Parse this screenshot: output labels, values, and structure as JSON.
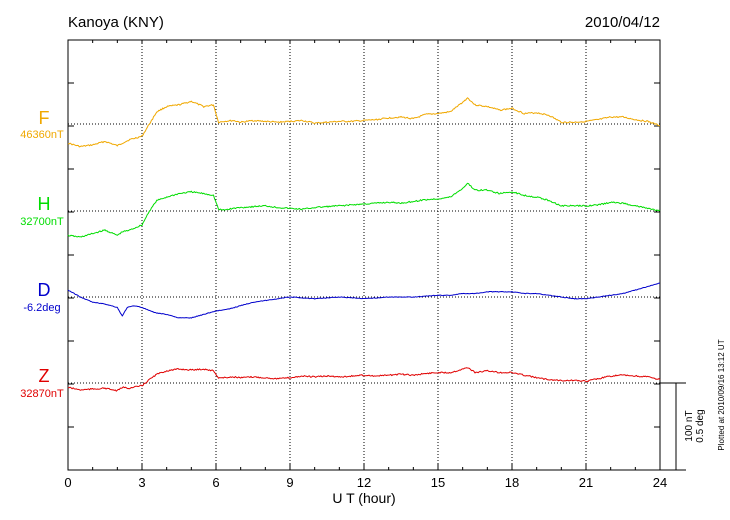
{
  "header": {
    "station": "Kanoya (KNY)",
    "date": "2010/04/12"
  },
  "footer": {
    "plotted_at": "Plotted at 2010/09/16 13:12 UT"
  },
  "scale_bar": {
    "label_nt": "100 nT",
    "label_deg": "0.5 deg"
  },
  "chart_data": {
    "type": "line",
    "title": "Kanoya (KNY)",
    "xlabel": "U T (hour)",
    "xlim": [
      0,
      24
    ],
    "xticks": [
      "0",
      "3",
      "6",
      "9",
      "12",
      "15",
      "18",
      "21",
      "24"
    ],
    "grid": "dotted vertical lines every 3 h; dotted baseline per trace",
    "scale": "vertical bar = 100 nT / 0.5 deg",
    "series": [
      {
        "name": "F",
        "baseline_label": "46360nT",
        "color": "#f0a800",
        "unit_per_scale_bar": 100,
        "hours": [
          0,
          0.5,
          1,
          1.5,
          2,
          2.2,
          2.5,
          3,
          3.3,
          3.6,
          4,
          4.5,
          5,
          5.5,
          5.9,
          6.1,
          6.3,
          6.7,
          7,
          7.5,
          8,
          8.5,
          9,
          9.5,
          10,
          10.5,
          11,
          11.5,
          12,
          12.5,
          13,
          13.5,
          14,
          14.5,
          15,
          15.5,
          16,
          16.2,
          16.5,
          17,
          17.5,
          18,
          18.5,
          19,
          19.5,
          20,
          20.5,
          21,
          21.5,
          22,
          22.5,
          23,
          23.5,
          24
        ],
        "values": [
          -22,
          -26,
          -24,
          -20,
          -25,
          -22,
          -18,
          -14,
          0,
          14,
          20,
          22,
          26,
          20,
          22,
          2,
          3,
          4,
          2,
          4,
          3,
          2,
          3,
          4,
          1,
          2,
          3,
          3,
          4,
          5,
          7,
          8,
          6,
          11,
          12,
          14,
          25,
          30,
          22,
          20,
          16,
          18,
          12,
          13,
          10,
          2,
          2,
          3,
          5,
          8,
          8,
          5,
          3,
          -2
        ]
      },
      {
        "name": "H",
        "baseline_label": "32700nT",
        "color": "#00dd00",
        "unit_per_scale_bar": 100,
        "hours": [
          0,
          0.5,
          1,
          1.5,
          2,
          2.2,
          2.5,
          3,
          3.3,
          3.6,
          4,
          4.5,
          5,
          5.5,
          5.9,
          6.1,
          6.3,
          6.7,
          7,
          7.5,
          8,
          8.5,
          9,
          9.5,
          10,
          10.5,
          11,
          11.5,
          12,
          12.5,
          13,
          13.5,
          14,
          14.5,
          15,
          15.5,
          16,
          16.2,
          16.5,
          17,
          17.5,
          18,
          18.5,
          19,
          19.5,
          20,
          20.5,
          21,
          21.5,
          22,
          22.5,
          23,
          23.5,
          24
        ],
        "values": [
          -28,
          -30,
          -26,
          -22,
          -28,
          -24,
          -22,
          -16,
          0,
          12,
          16,
          20,
          22,
          20,
          18,
          2,
          1,
          3,
          4,
          5,
          6,
          4,
          3,
          2,
          4,
          5,
          6,
          7,
          8,
          9,
          10,
          9,
          11,
          13,
          14,
          16,
          26,
          32,
          24,
          24,
          20,
          22,
          18,
          16,
          12,
          6,
          6,
          6,
          7,
          10,
          9,
          6,
          3,
          0
        ]
      },
      {
        "name": "D",
        "baseline_label": "-6.2deg",
        "color": "#0000cc",
        "unit_per_scale_bar": 0.5,
        "hours": [
          0,
          0.5,
          1,
          1.5,
          2,
          2.2,
          2.4,
          2.7,
          3,
          3.5,
          4,
          4.5,
          5,
          5.5,
          6,
          6.5,
          7,
          7.5,
          8,
          8.5,
          9,
          10,
          11,
          12,
          13,
          14,
          15,
          15.5,
          16,
          16.5,
          17,
          17.5,
          18,
          18.5,
          19,
          19.5,
          20,
          20.5,
          21,
          21.5,
          22,
          22.5,
          23,
          23.5,
          24
        ],
        "values": [
          0.04,
          0.0,
          -0.03,
          -0.04,
          -0.06,
          -0.11,
          -0.06,
          -0.05,
          -0.06,
          -0.09,
          -0.1,
          -0.12,
          -0.12,
          -0.1,
          -0.08,
          -0.07,
          -0.05,
          -0.03,
          -0.02,
          -0.01,
          0.0,
          -0.01,
          0.0,
          -0.01,
          0.0,
          0.0,
          0.01,
          0.01,
          0.02,
          0.02,
          0.03,
          0.03,
          0.03,
          0.02,
          0.02,
          0.01,
          0.0,
          -0.01,
          -0.01,
          0.0,
          0.01,
          0.02,
          0.04,
          0.06,
          0.08
        ]
      },
      {
        "name": "Z",
        "baseline_label": "32870nT",
        "color": "#e00000",
        "unit_per_scale_bar": 100,
        "hours": [
          0,
          0.5,
          1,
          1.5,
          2,
          2.2,
          2.5,
          3,
          3.3,
          3.6,
          4,
          4.5,
          5,
          5.5,
          5.9,
          6.1,
          6.3,
          6.7,
          7,
          7.5,
          8,
          8.5,
          9,
          9.5,
          10,
          10.5,
          11,
          11.5,
          12,
          12.5,
          13,
          13.5,
          14,
          14.5,
          15,
          15.5,
          16,
          16.2,
          16.5,
          17,
          17.5,
          18,
          18.5,
          19,
          19.5,
          20,
          20.5,
          21,
          21.5,
          22,
          22.5,
          23,
          23.5,
          24
        ],
        "values": [
          -5,
          -8,
          -7,
          -6,
          -9,
          -5,
          -6,
          -3,
          4,
          10,
          14,
          16,
          15,
          16,
          14,
          6,
          6,
          7,
          6,
          7,
          6,
          5,
          6,
          8,
          7,
          8,
          7,
          8,
          9,
          8,
          9,
          10,
          9,
          11,
          12,
          12,
          16,
          18,
          12,
          14,
          12,
          12,
          9,
          6,
          4,
          3,
          3,
          2,
          5,
          8,
          9,
          8,
          7,
          4
        ]
      }
    ]
  }
}
